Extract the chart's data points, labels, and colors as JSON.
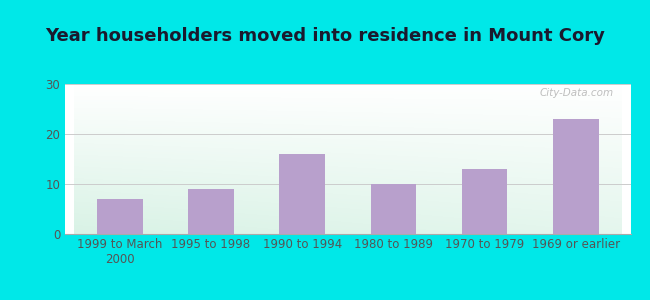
{
  "title": "Year householders moved into residence in Mount Cory",
  "categories": [
    "1999 to March\n2000",
    "1995 to 1998",
    "1990 to 1994",
    "1980 to 1989",
    "1970 to 1979",
    "1969 or earlier"
  ],
  "values": [
    7,
    9,
    16,
    10,
    13,
    23
  ],
  "bar_color": "#b8a0cc",
  "ylim": [
    0,
    30
  ],
  "yticks": [
    0,
    10,
    20,
    30
  ],
  "background_outer": "#00e8e8",
  "grid_color": "#cccccc",
  "title_fontsize": 13,
  "tick_fontsize": 8.5,
  "watermark": "City-Data.com",
  "title_color": "#1a1a2e",
  "tick_color": "#555555"
}
